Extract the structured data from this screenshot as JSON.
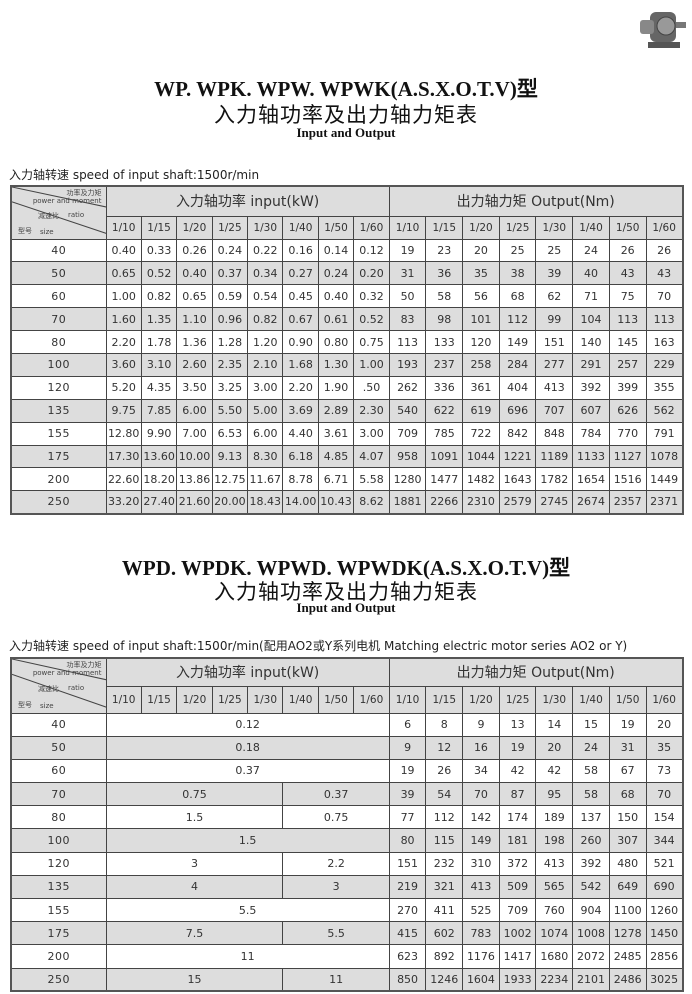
{
  "corner_image": {
    "icon": "gearbox-product-photo"
  },
  "colors": {
    "header_bg": "#dddddd",
    "shade_row": "#dddddd",
    "border": "#444444"
  },
  "header_cell": {
    "power_cn": "功率及力矩",
    "power_en": "power and moment",
    "ratio_cn": "减速比",
    "ratio_en": "ratio",
    "size_cn": "型号",
    "size_en": "size"
  },
  "tables": [
    {
      "title": "WP. WPK. WPW. WPWK(A.S.X.O.T.V)型",
      "subtitle_cn": "入力轴功率及出力轴力矩表",
      "subtitle_en": "Input and Output",
      "speed_note": "入力轴转速  speed of input shaft:1500r/min",
      "input_header": "入力轴功率  input(kW)",
      "output_header": "出力轴力矩  Output(Nm)",
      "ratios": [
        "1/10",
        "1/15",
        "1/20",
        "1/25",
        "1/30",
        "1/40",
        "1/50",
        "1/60"
      ],
      "rows": [
        {
          "size": "40",
          "input": [
            {
              "v": "0.40",
              "s": 1
            },
            {
              "v": "0.33",
              "s": 1
            },
            {
              "v": "0.26",
              "s": 1
            },
            {
              "v": "0.24",
              "s": 1
            },
            {
              "v": "0.22",
              "s": 1
            },
            {
              "v": "0.16",
              "s": 1
            },
            {
              "v": "0.14",
              "s": 1
            },
            {
              "v": "0.12",
              "s": 1
            }
          ],
          "output": [
            "19",
            "23",
            "20",
            "25",
            "25",
            "24",
            "26",
            "26"
          ]
        },
        {
          "size": "50",
          "input": [
            {
              "v": "0.65",
              "s": 1
            },
            {
              "v": "0.52",
              "s": 1
            },
            {
              "v": "0.40",
              "s": 1
            },
            {
              "v": "0.37",
              "s": 1
            },
            {
              "v": "0.34",
              "s": 1
            },
            {
              "v": "0.27",
              "s": 1
            },
            {
              "v": "0.24",
              "s": 1
            },
            {
              "v": "0.20",
              "s": 1
            }
          ],
          "output": [
            "31",
            "36",
            "35",
            "38",
            "39",
            "40",
            "43",
            "43"
          ]
        },
        {
          "size": "60",
          "input": [
            {
              "v": "1.00",
              "s": 1
            },
            {
              "v": "0.82",
              "s": 1
            },
            {
              "v": "0.65",
              "s": 1
            },
            {
              "v": "0.59",
              "s": 1
            },
            {
              "v": "0.54",
              "s": 1
            },
            {
              "v": "0.45",
              "s": 1
            },
            {
              "v": "0.40",
              "s": 1
            },
            {
              "v": "0.32",
              "s": 1
            }
          ],
          "output": [
            "50",
            "58",
            "56",
            "68",
            "62",
            "71",
            "75",
            "70"
          ]
        },
        {
          "size": "70",
          "input": [
            {
              "v": "1.60",
              "s": 1
            },
            {
              "v": "1.35",
              "s": 1
            },
            {
              "v": "1.10",
              "s": 1
            },
            {
              "v": "0.96",
              "s": 1
            },
            {
              "v": "0.82",
              "s": 1
            },
            {
              "v": "0.67",
              "s": 1
            },
            {
              "v": "0.61",
              "s": 1
            },
            {
              "v": "0.52",
              "s": 1
            }
          ],
          "output": [
            "83",
            "98",
            "101",
            "112",
            "99",
            "104",
            "113",
            "113"
          ]
        },
        {
          "size": "80",
          "input": [
            {
              "v": "2.20",
              "s": 1
            },
            {
              "v": "1.78",
              "s": 1
            },
            {
              "v": "1.36",
              "s": 1
            },
            {
              "v": "1.28",
              "s": 1
            },
            {
              "v": "1.20",
              "s": 1
            },
            {
              "v": "0.90",
              "s": 1
            },
            {
              "v": "0.80",
              "s": 1
            },
            {
              "v": "0.75",
              "s": 1
            }
          ],
          "output": [
            "113",
            "133",
            "120",
            "149",
            "151",
            "140",
            "145",
            "163"
          ]
        },
        {
          "size": "100",
          "input": [
            {
              "v": "3.60",
              "s": 1
            },
            {
              "v": "3.10",
              "s": 1
            },
            {
              "v": "2.60",
              "s": 1
            },
            {
              "v": "2.35",
              "s": 1
            },
            {
              "v": "2.10",
              "s": 1
            },
            {
              "v": "1.68",
              "s": 1
            },
            {
              "v": "1.30",
              "s": 1
            },
            {
              "v": "1.00",
              "s": 1
            }
          ],
          "output": [
            "193",
            "237",
            "258",
            "284",
            "277",
            "291",
            "257",
            "229"
          ]
        },
        {
          "size": "120",
          "input": [
            {
              "v": "5.20",
              "s": 1
            },
            {
              "v": "4.35",
              "s": 1
            },
            {
              "v": "3.50",
              "s": 1
            },
            {
              "v": "3.25",
              "s": 1
            },
            {
              "v": "3.00",
              "s": 1
            },
            {
              "v": "2.20",
              "s": 1
            },
            {
              "v": "1.90",
              "s": 1
            },
            {
              "v": ".50",
              "s": 1
            }
          ],
          "output": [
            "262",
            "336",
            "361",
            "404",
            "413",
            "392",
            "399",
            "355"
          ]
        },
        {
          "size": "135",
          "input": [
            {
              "v": "9.75",
              "s": 1
            },
            {
              "v": "7.85",
              "s": 1
            },
            {
              "v": "6.00",
              "s": 1
            },
            {
              "v": "5.50",
              "s": 1
            },
            {
              "v": "5.00",
              "s": 1
            },
            {
              "v": "3.69",
              "s": 1
            },
            {
              "v": "2.89",
              "s": 1
            },
            {
              "v": "2.30",
              "s": 1
            }
          ],
          "output": [
            "540",
            "622",
            "619",
            "696",
            "707",
            "607",
            "626",
            "562"
          ]
        },
        {
          "size": "155",
          "input": [
            {
              "v": "12.80",
              "s": 1
            },
            {
              "v": "9.90",
              "s": 1
            },
            {
              "v": "7.00",
              "s": 1
            },
            {
              "v": "6.53",
              "s": 1
            },
            {
              "v": "6.00",
              "s": 1
            },
            {
              "v": "4.40",
              "s": 1
            },
            {
              "v": "3.61",
              "s": 1
            },
            {
              "v": "3.00",
              "s": 1
            }
          ],
          "output": [
            "709",
            "785",
            "722",
            "842",
            "848",
            "784",
            "770",
            "791"
          ]
        },
        {
          "size": "175",
          "input": [
            {
              "v": "17.30",
              "s": 1
            },
            {
              "v": "13.60",
              "s": 1
            },
            {
              "v": "10.00",
              "s": 1
            },
            {
              "v": "9.13",
              "s": 1
            },
            {
              "v": "8.30",
              "s": 1
            },
            {
              "v": "6.18",
              "s": 1
            },
            {
              "v": "4.85",
              "s": 1
            },
            {
              "v": "4.07",
              "s": 1
            }
          ],
          "output": [
            "958",
            "1091",
            "1044",
            "1221",
            "1189",
            "1133",
            "1127",
            "1078"
          ]
        },
        {
          "size": "200",
          "input": [
            {
              "v": "22.60",
              "s": 1
            },
            {
              "v": "18.20",
              "s": 1
            },
            {
              "v": "13.86",
              "s": 1
            },
            {
              "v": "12.75",
              "s": 1
            },
            {
              "v": "11.67",
              "s": 1
            },
            {
              "v": "8.78",
              "s": 1
            },
            {
              "v": "6.71",
              "s": 1
            },
            {
              "v": "5.58",
              "s": 1
            }
          ],
          "output": [
            "1280",
            "1477",
            "1482",
            "1643",
            "1782",
            "1654",
            "1516",
            "1449"
          ]
        },
        {
          "size": "250",
          "input": [
            {
              "v": "33.20",
              "s": 1
            },
            {
              "v": "27.40",
              "s": 1
            },
            {
              "v": "21.60",
              "s": 1
            },
            {
              "v": "20.00",
              "s": 1
            },
            {
              "v": "18.43",
              "s": 1
            },
            {
              "v": "14.00",
              "s": 1
            },
            {
              "v": "10.43",
              "s": 1
            },
            {
              "v": "8.62",
              "s": 1
            }
          ],
          "output": [
            "1881",
            "2266",
            "2310",
            "2579",
            "2745",
            "2674",
            "2357",
            "2371"
          ]
        }
      ]
    },
    {
      "title": "WPD. WPDK. WPWD. WPWDK(A.S.X.O.T.V)型",
      "subtitle_cn": "入力轴功率及出力轴力矩表",
      "subtitle_en": "Input and Output",
      "speed_note": "入力轴转速  speed of input shaft:1500r/min(配用AO2或Y系列电机 Matching electric motor series AO2 or Y)",
      "input_header": "入力轴功率  input(kW)",
      "output_header": "出力轴力矩  Output(Nm)",
      "ratios": [
        "1/10",
        "1/15",
        "1/20",
        "1/25",
        "1/30",
        "1/40",
        "1/50",
        "1/60"
      ],
      "rows": [
        {
          "size": "40",
          "input": [
            {
              "v": "0.12",
              "s": 8
            }
          ],
          "output": [
            "6",
            "8",
            "9",
            "13",
            "14",
            "15",
            "19",
            "20"
          ]
        },
        {
          "size": "50",
          "input": [
            {
              "v": "0.18",
              "s": 8
            }
          ],
          "output": [
            "9",
            "12",
            "16",
            "19",
            "20",
            "24",
            "31",
            "35"
          ]
        },
        {
          "size": "60",
          "input": [
            {
              "v": "0.37",
              "s": 8
            }
          ],
          "output": [
            "19",
            "26",
            "34",
            "42",
            "42",
            "58",
            "67",
            "73"
          ]
        },
        {
          "size": "70",
          "input": [
            {
              "v": "0.75",
              "s": 5
            },
            {
              "v": "0.37",
              "s": 3
            }
          ],
          "output": [
            "39",
            "54",
            "70",
            "87",
            "95",
            "58",
            "68",
            "70"
          ]
        },
        {
          "size": "80",
          "input": [
            {
              "v": "1.5",
              "s": 5
            },
            {
              "v": "0.75",
              "s": 3
            }
          ],
          "output": [
            "77",
            "112",
            "142",
            "174",
            "189",
            "137",
            "150",
            "154"
          ]
        },
        {
          "size": "100",
          "input": [
            {
              "v": "1.5",
              "s": 8
            }
          ],
          "output": [
            "80",
            "115",
            "149",
            "181",
            "198",
            "260",
            "307",
            "344"
          ]
        },
        {
          "size": "120",
          "input": [
            {
              "v": "3",
              "s": 5
            },
            {
              "v": "2.2",
              "s": 3
            }
          ],
          "output": [
            "151",
            "232",
            "310",
            "372",
            "413",
            "392",
            "480",
            "521"
          ]
        },
        {
          "size": "135",
          "input": [
            {
              "v": "4",
              "s": 5
            },
            {
              "v": "3",
              "s": 3
            }
          ],
          "output": [
            "219",
            "321",
            "413",
            "509",
            "565",
            "542",
            "649",
            "690"
          ]
        },
        {
          "size": "155",
          "input": [
            {
              "v": "5.5",
              "s": 8
            }
          ],
          "output": [
            "270",
            "411",
            "525",
            "709",
            "760",
            "904",
            "1100",
            "1260"
          ]
        },
        {
          "size": "175",
          "input": [
            {
              "v": "7.5",
              "s": 5
            },
            {
              "v": "5.5",
              "s": 3
            }
          ],
          "output": [
            "415",
            "602",
            "783",
            "1002",
            "1074",
            "1008",
            "1278",
            "1450"
          ]
        },
        {
          "size": "200",
          "input": [
            {
              "v": "11",
              "s": 8
            }
          ],
          "output": [
            "623",
            "892",
            "1176",
            "1417",
            "1680",
            "2072",
            "2485",
            "2856"
          ]
        },
        {
          "size": "250",
          "input": [
            {
              "v": "15",
              "s": 5
            },
            {
              "v": "11",
              "s": 3
            }
          ],
          "output": [
            "850",
            "1246",
            "1604",
            "1933",
            "2234",
            "2101",
            "2486",
            "3025"
          ]
        }
      ]
    }
  ]
}
